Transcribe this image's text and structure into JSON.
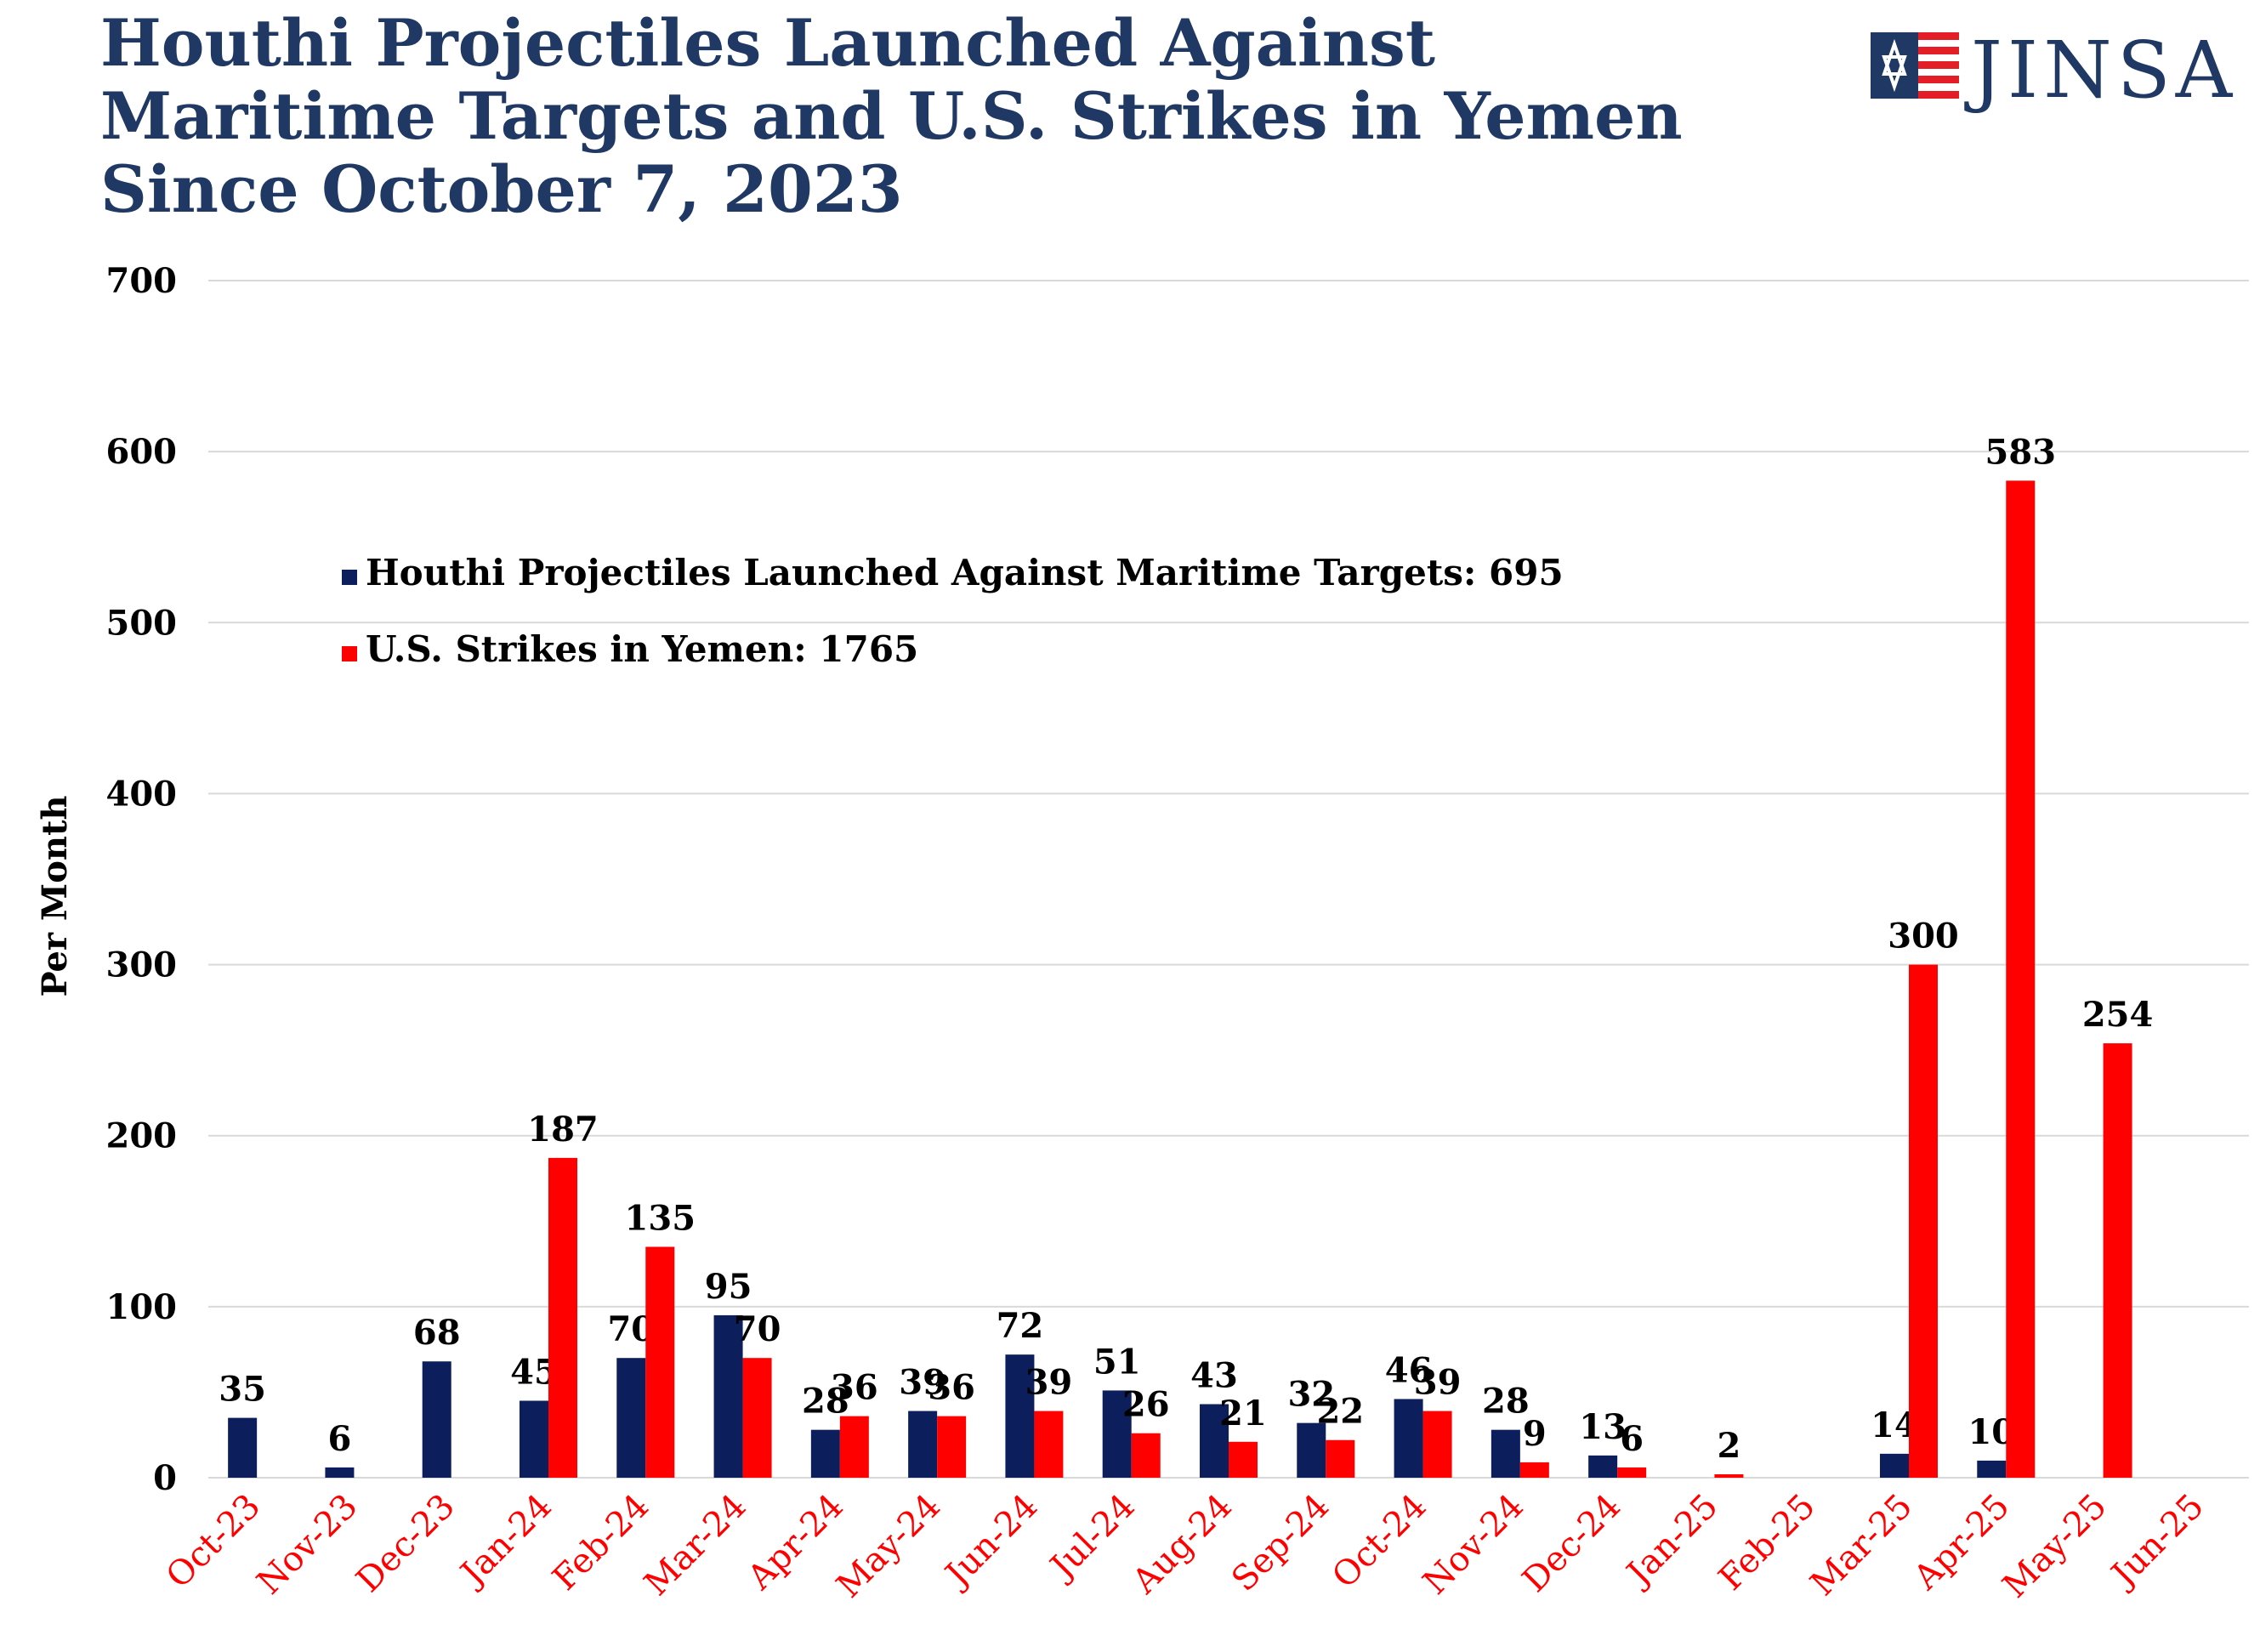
{
  "title_lines": [
    "Houthi Projectiles Launched Against",
    "Maritime Targets and U.S. Strikes in Yemen",
    "Since October 7, 2023"
  ],
  "logo": {
    "text": "JINSA",
    "icon": "star-flag-icon"
  },
  "colors": {
    "title": "#1f3864",
    "houthi": "#0c1f5c",
    "us": "#ff0000",
    "grid": "#d9d9d9",
    "category_labels": "#ff0000"
  },
  "chart_data": {
    "type": "bar",
    "title": "Houthi Projectiles Launched Against Maritime Targets and U.S. Strikes in Yemen Since October 7, 2023",
    "xlabel": "",
    "ylabel": "Per Month",
    "ylim": [
      0,
      700
    ],
    "yticks": [
      0,
      100,
      200,
      300,
      400,
      500,
      600,
      700
    ],
    "grid": true,
    "legend_position": "upper-left",
    "categories": [
      "Oct-23",
      "Nov-23",
      "Dec-23",
      "Jan-24",
      "Feb-24",
      "Mar-24",
      "Apr-24",
      "May-24",
      "Jun-24",
      "Jul-24",
      "Aug-24",
      "Sep-24",
      "Oct-24",
      "Nov-24",
      "Dec-24",
      "Jan-25",
      "Feb-25",
      "Mar-25",
      "Apr-25",
      "May-25",
      "Jun-25"
    ],
    "series": [
      {
        "name": "Houthi Projectiles Launched Against Maritime Targets: 695",
        "color": "#0c1f5c",
        "values": [
          35,
          6,
          68,
          45,
          70,
          95,
          28,
          39,
          72,
          51,
          43,
          32,
          46,
          28,
          13,
          null,
          null,
          14,
          10,
          null,
          null
        ]
      },
      {
        "name": "U.S. Strikes in Yemen: 1765",
        "color": "#ff0000",
        "values": [
          null,
          null,
          null,
          187,
          135,
          70,
          36,
          36,
          39,
          26,
          21,
          22,
          39,
          9,
          6,
          2,
          null,
          300,
          583,
          254,
          null
        ]
      }
    ]
  }
}
